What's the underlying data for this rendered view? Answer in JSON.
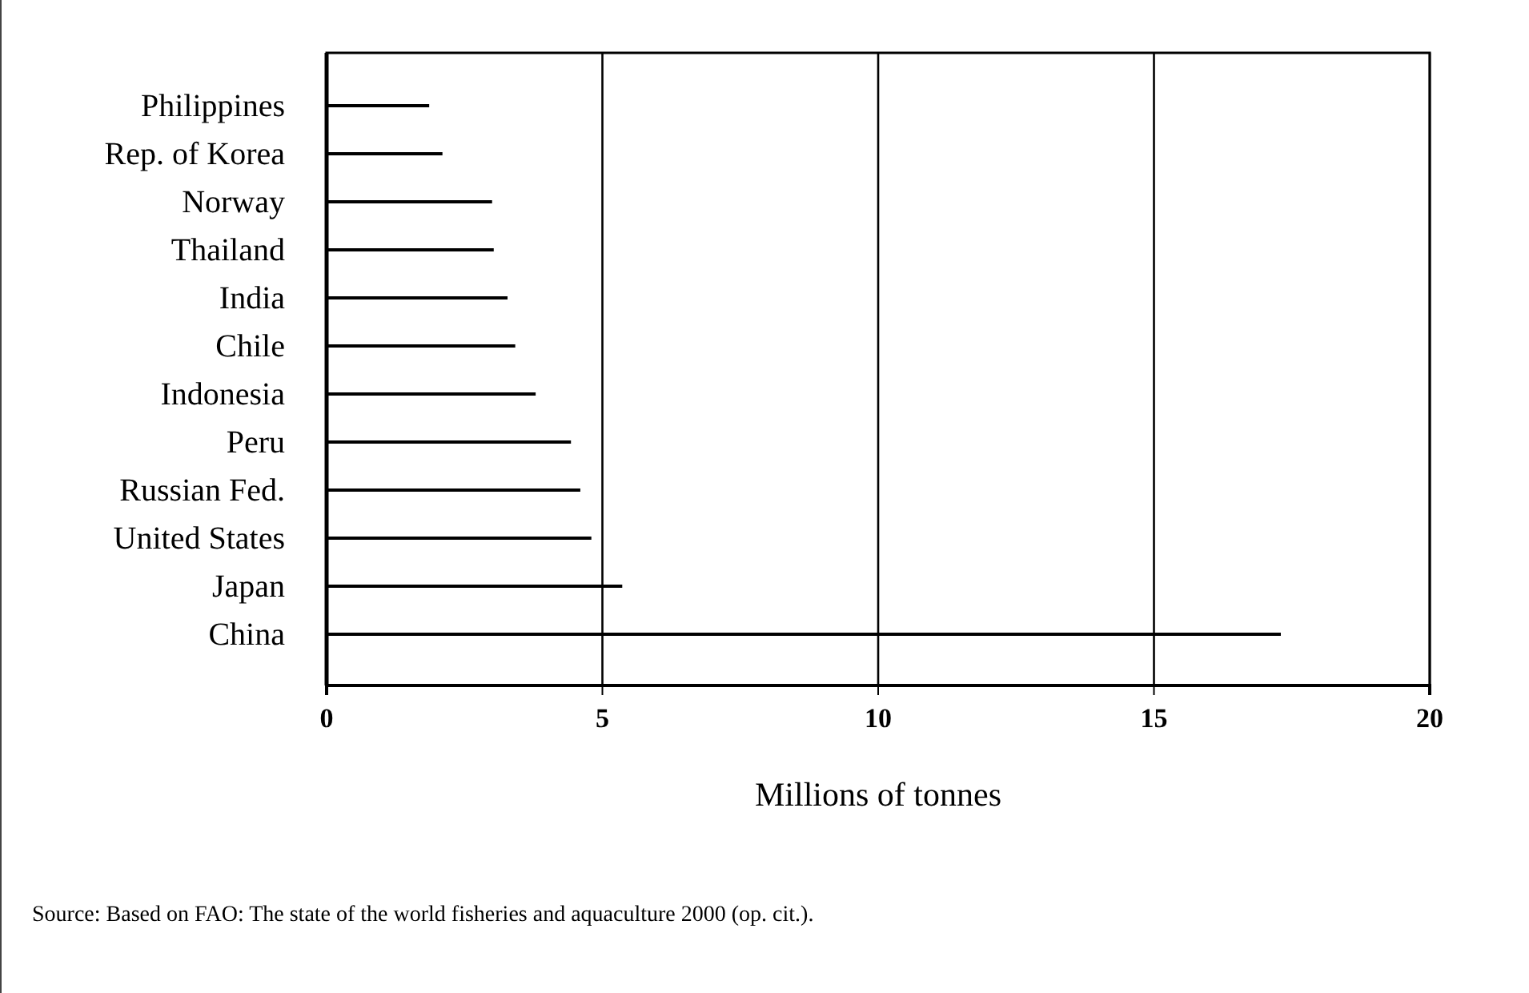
{
  "chart_data": {
    "type": "bar",
    "orientation": "horizontal",
    "xlabel": "Millions of tonnes",
    "categories": [
      "Philippines",
      "Rep. of Korea",
      "Norway",
      "Thailand",
      "India",
      "Chile",
      "Indonesia",
      "Peru",
      "Russian Fed.",
      "United States",
      "Japan",
      "China"
    ],
    "values": [
      1.86,
      2.1,
      3.0,
      3.03,
      3.28,
      3.42,
      3.79,
      4.43,
      4.6,
      4.8,
      5.36,
      17.3
    ],
    "color": "#000000",
    "xlim": [
      0,
      20
    ],
    "xticks": [
      0,
      5,
      10,
      15,
      20
    ],
    "grid": "x",
    "annotations": [
      "Source: Based on FAO: The state of the world fisheries and aquaculture 2000 (op. cit.)."
    ]
  }
}
